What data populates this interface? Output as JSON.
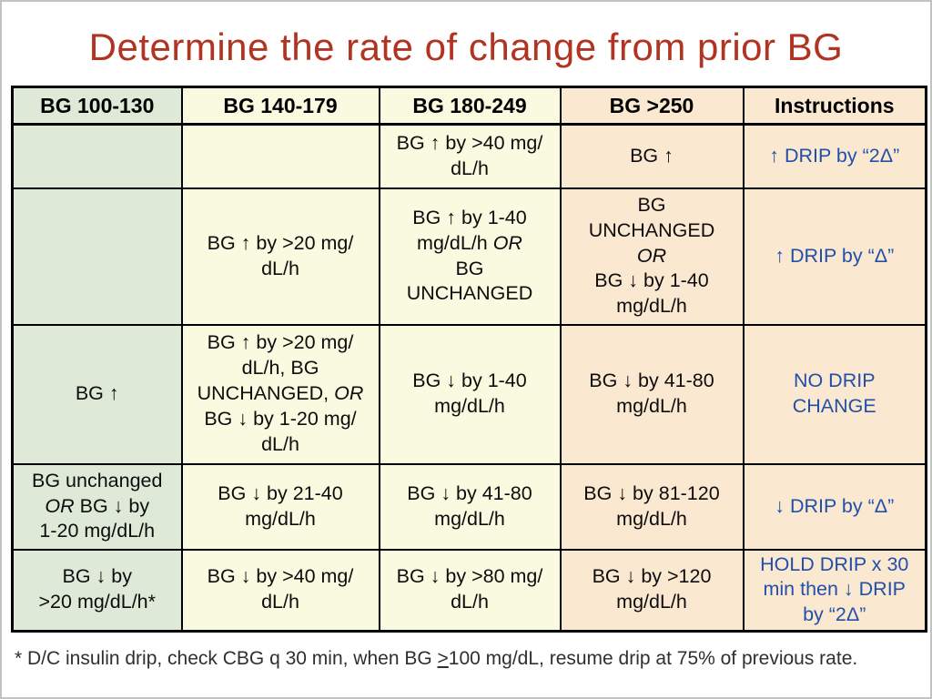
{
  "slide": {
    "title": "Determine the rate of change from prior BG"
  },
  "colors": {
    "title_red": "#b03421",
    "instruction_blue": "#2050a8",
    "col_green": "#dfe9d8",
    "col_yellow": "#f9fadf",
    "col_peach": "#fbe8d1",
    "border_black": "#000000"
  },
  "table": {
    "headers": [
      {
        "label": "BG 100-130",
        "theme": "green"
      },
      {
        "label": "BG 140-179",
        "theme": "yellow"
      },
      {
        "label": "BG 180-249",
        "theme": "yellow"
      },
      {
        "label": "BG >250",
        "theme": "peach"
      },
      {
        "label": "Instructions",
        "theme": "peach"
      }
    ],
    "rows": [
      {
        "cells": [
          {
            "segs": []
          },
          {
            "segs": []
          },
          {
            "segs": [
              "BG ↑ by >40 mg/",
              "\n",
              "dL/h"
            ]
          },
          {
            "segs": [
              "BG ↑"
            ]
          },
          {
            "instruction": true,
            "segs": [
              "↑ DRIP by “2Δ”"
            ]
          }
        ]
      },
      {
        "cells": [
          {
            "segs": []
          },
          {
            "segs": [
              "BG ↑ by >20 mg/",
              "\n",
              "dL/h"
            ]
          },
          {
            "segs": [
              "BG ↑ by 1-40",
              "\n",
              "mg/dL/h ",
              {
                "t": "OR",
                "i": true
              },
              "\n",
              "BG",
              "\n",
              "UNCHANGED"
            ]
          },
          {
            "segs": [
              "BG",
              "\n",
              "UNCHANGED",
              "\n",
              {
                "t": "OR",
                "i": true
              },
              "\n",
              "BG ↓ by 1-40",
              "\n",
              "mg/dL/h"
            ]
          },
          {
            "instruction": true,
            "segs": [
              "↑ DRIP by “Δ”"
            ]
          }
        ]
      },
      {
        "cells": [
          {
            "segs": [
              "BG ↑"
            ]
          },
          {
            "segs": [
              "BG ↑ by >20 mg/",
              "\n",
              "dL/h, BG",
              "\n",
              "UNCHANGED, ",
              {
                "t": "OR",
                "i": true
              },
              "\n",
              "BG ↓ by 1-20 mg/",
              "\n",
              "dL/h"
            ]
          },
          {
            "segs": [
              "BG ↓ by 1-40",
              "\n",
              "mg/dL/h"
            ]
          },
          {
            "segs": [
              "BG ↓ by 41-80",
              "\n",
              "mg/dL/h"
            ]
          },
          {
            "instruction": true,
            "segs": [
              "NO DRIP",
              "\n",
              "CHANGE"
            ]
          }
        ]
      },
      {
        "cells": [
          {
            "segs": [
              "BG unchanged",
              "\n",
              {
                "t": "OR",
                "i": true
              },
              " BG ↓ by",
              "\n",
              "1-20 mg/dL/h"
            ]
          },
          {
            "segs": [
              "BG ↓ by 21-40",
              "\n",
              "mg/dL/h"
            ]
          },
          {
            "segs": [
              "BG ↓ by 41-80",
              "\n",
              "mg/dL/h"
            ]
          },
          {
            "segs": [
              "BG ↓ by 81-120",
              "\n",
              "mg/dL/h"
            ]
          },
          {
            "instruction": true,
            "segs": [
              "↓ DRIP by “Δ”"
            ]
          }
        ]
      },
      {
        "cells": [
          {
            "segs": [
              "BG ↓ by",
              "\n",
              ">20 mg/dL/h*"
            ]
          },
          {
            "segs": [
              "BG ↓ by >40 mg/",
              "\n",
              "dL/h"
            ]
          },
          {
            "segs": [
              "BG ↓ by >80 mg/",
              "\n",
              "dL/h"
            ]
          },
          {
            "segs": [
              "BG ↓ by >120",
              "\n",
              "mg/dL/h"
            ]
          },
          {
            "instruction": true,
            "segs": [
              "HOLD DRIP x 30",
              "\n",
              "min then ↓ DRIP",
              "\n",
              "by “2Δ”"
            ]
          }
        ]
      }
    ]
  },
  "footnote": {
    "prefix": "* D/C insulin drip, check CBG q 30 min, when BG ",
    "geq_symbol": ">",
    "suffix": "100 mg/dL, resume drip at 75% of previous rate."
  }
}
